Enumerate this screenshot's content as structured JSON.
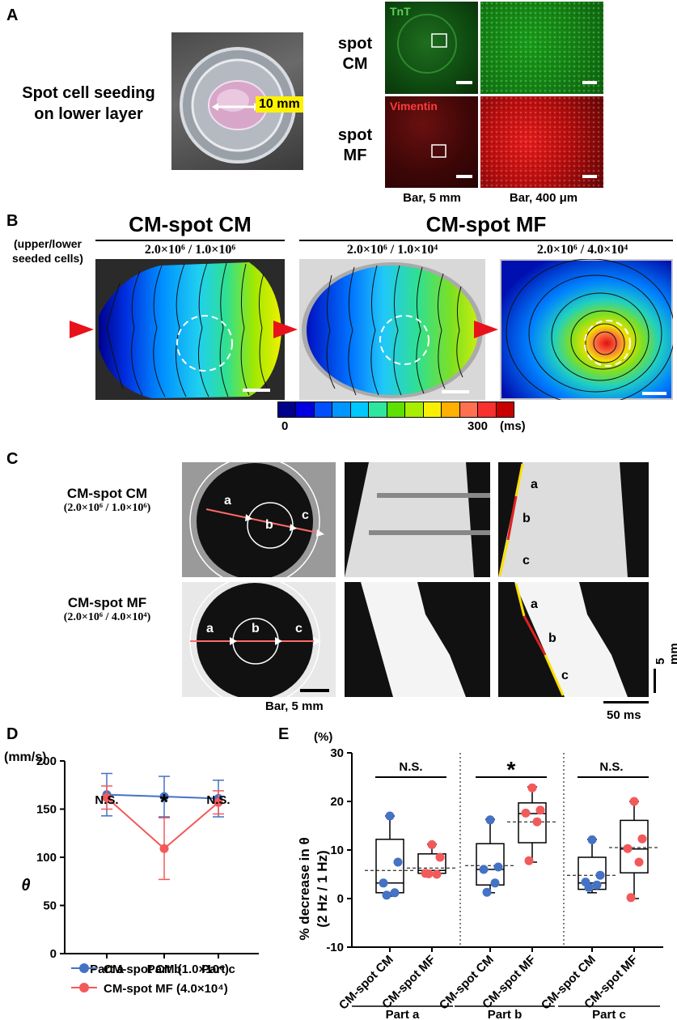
{
  "panelA": {
    "letter": "A",
    "seeding_label_line1": "Spot cell seeding",
    "seeding_label_line2": "on lower layer",
    "dish_size": "10 mm",
    "tnt_stain": "TnT",
    "vimentin_stain": "Vimentin",
    "row1_line1": "spot",
    "row1_line2": "CM",
    "row2_line1": "spot",
    "row2_line2": "MF",
    "bar_left": "Bar, 5 mm",
    "bar_right": "Bar, 400 μm"
  },
  "panelB": {
    "letter": "B",
    "side_label_line1": "(upper/lower",
    "side_label_line2": "seeded cells)",
    "title_left": "CM-spot CM",
    "title_right": "CM-spot MF",
    "cond1": "2.0×10⁶ / 1.0×10⁶",
    "cond2": "2.0×10⁶ / 1.0×10⁴",
    "cond3": "2.0×10⁶ / 4.0×10⁴",
    "colorbar_min": "0",
    "colorbar_max": "300",
    "colorbar_unit": "(ms)",
    "colorbar_colors": [
      "#00008b",
      "#0000e0",
      "#0050ff",
      "#0096ff",
      "#00c8ff",
      "#2ee6a0",
      "#5ee000",
      "#a8ee00",
      "#f8f000",
      "#ffb000",
      "#ff7050",
      "#f83030",
      "#c80000"
    ]
  },
  "panelC": {
    "letter": "C",
    "row1_title": "CM-spot CM",
    "row1_cond": "(2.0×10⁶ / 1.0×10⁶)",
    "row2_title": "CM-spot MF",
    "row2_cond": "(2.0×10⁶ / 4.0×10⁴)",
    "seg_a": "a",
    "seg_b": "b",
    "seg_c": "c",
    "bar_space": "Bar, 5 mm",
    "bar_time": "50 ms",
    "bar_vert": "5 mm"
  },
  "panelD": {
    "letter": "D",
    "unit": "(mm/s)",
    "ylabel": "θ",
    "sig": [
      "N.S.",
      "*",
      "N.S."
    ],
    "legend_cm": "CM-spot CM (1.0×10⁶)",
    "legend_mf": "CM-spot MF (4.0×10⁴)",
    "colors": {
      "cm": "#4472c4",
      "mf": "#f25a5a"
    }
  },
  "panelE": {
    "letter": "E",
    "unit": "(%)",
    "ylabel_line1": "% decrease in θ",
    "ylabel_line2": "(2 Hz / 1 Hz)",
    "sig": [
      "N.S.",
      "*",
      "N.S."
    ],
    "group_labels": [
      "CM-spot CM",
      "CM-spot MF"
    ],
    "parts": [
      "Part a",
      "Part b",
      "Part c"
    ]
  },
  "chart_data": [
    {
      "type": "line",
      "panel": "D",
      "title": "",
      "xlabel": "",
      "ylabel": "θ (mm/s)",
      "categories": [
        "Part a",
        "Part b",
        "Part c"
      ],
      "ylim": [
        0,
        200
      ],
      "yticks": [
        "0",
        "50",
        "100",
        "150",
        "200"
      ],
      "series": [
        {
          "name": "CM-spot CM (1.0×10⁶)",
          "values": [
            165,
            163,
            161
          ],
          "errors": [
            22,
            21,
            19
          ]
        },
        {
          "name": "CM-spot MF (4.0×10⁴)",
          "values": [
            162,
            109,
            157
          ],
          "errors": [
            12,
            32,
            12
          ]
        }
      ]
    },
    {
      "type": "box",
      "panel": "E",
      "title": "",
      "ylabel": "% decrease in θ (2 Hz / 1 Hz)",
      "ylim": [
        -10,
        30
      ],
      "yticks": [
        "-10",
        "0",
        "10",
        "20",
        "30"
      ],
      "groups": [
        {
          "part": "Part a",
          "series": "CM-spot CM",
          "min": 0.5,
          "q1": 1.2,
          "median": 3.2,
          "q3": 12.2,
          "max": 17,
          "mean": 5.8,
          "points": [
            17,
            7.5,
            3.2,
            1.2,
            0.7
          ]
        },
        {
          "part": "Part a",
          "series": "CM-spot MF",
          "min": 4.8,
          "q1": 5.2,
          "median": 5.8,
          "q3": 9.2,
          "max": 11.2,
          "mean": 6.3,
          "points": [
            11.1,
            8.5,
            5.2,
            5.0,
            5.1
          ]
        },
        {
          "part": "Part b",
          "series": "CM-spot CM",
          "min": 1.2,
          "q1": 2.8,
          "median": 6.0,
          "q3": 11.3,
          "max": 16.3,
          "mean": 6.8,
          "points": [
            16.2,
            6.5,
            6.0,
            3.2,
            1.3
          ]
        },
        {
          "part": "Part b",
          "series": "CM-spot MF",
          "min": 7.5,
          "q1": 11.5,
          "median": 17.5,
          "q3": 19.7,
          "max": 23,
          "mean": 15.8,
          "points": [
            22.8,
            18.2,
            17.6,
            15.8,
            7.8
          ]
        },
        {
          "part": "Part c",
          "series": "CM-spot CM",
          "min": 1.2,
          "q1": 1.9,
          "median": 3.2,
          "q3": 8.5,
          "max": 12.2,
          "mean": 4.8,
          "points": [
            12.1,
            4.8,
            3.4,
            2.8,
            2.3
          ]
        },
        {
          "part": "Part c",
          "series": "CM-spot MF",
          "min": 0,
          "q1": 5.3,
          "median": 10.2,
          "q3": 16.1,
          "max": 20,
          "mean": 10.5,
          "points": [
            20,
            12.3,
            10.3,
            7.5,
            0.2
          ]
        }
      ]
    }
  ]
}
